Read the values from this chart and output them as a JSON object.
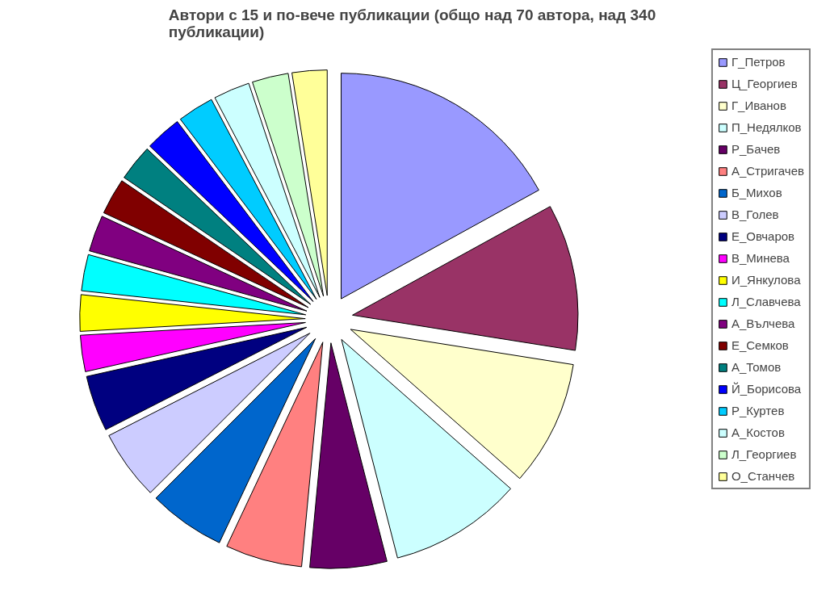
{
  "chart_data": {
    "type": "pie",
    "title": "Автори с 15 и по-вече публикации (общо над 70 автора, над 340 публикации)",
    "categories": [
      "Г_Петров",
      "Ц_Георгиев",
      "Г_Иванов",
      "П_Недялков",
      "Р_Бачев",
      "А_Стригачев",
      "Б_Михов",
      "В_Голев",
      "Е_Овчаров",
      "В_Минева",
      "И_Янкулова",
      "Л_Славчева",
      "А_Вълчева",
      "Е_Семков",
      "А_Томов",
      "Й_Борисова",
      "Р_Куртев",
      "А_Костов",
      "Л_Георгиев",
      "О_Станчев"
    ],
    "values": [
      17,
      10.5,
      9,
      9.5,
      5.5,
      5.5,
      5.5,
      5,
      4,
      2.6,
      2.6,
      2.6,
      2.6,
      2.6,
      2.6,
      2.6,
      2.6,
      2.6,
      2.6,
      2.5
    ],
    "colors": [
      "#9999ff",
      "#993366",
      "#ffffcc",
      "#ccffff",
      "#660066",
      "#ff8080",
      "#0066cc",
      "#ccccff",
      "#000080",
      "#ff00ff",
      "#ffff00",
      "#00ffff",
      "#800080",
      "#800000",
      "#008080",
      "#0000ff",
      "#00ccff",
      "#ccffff",
      "#ccffcc",
      "#ffff99"
    ],
    "legend": "right"
  }
}
